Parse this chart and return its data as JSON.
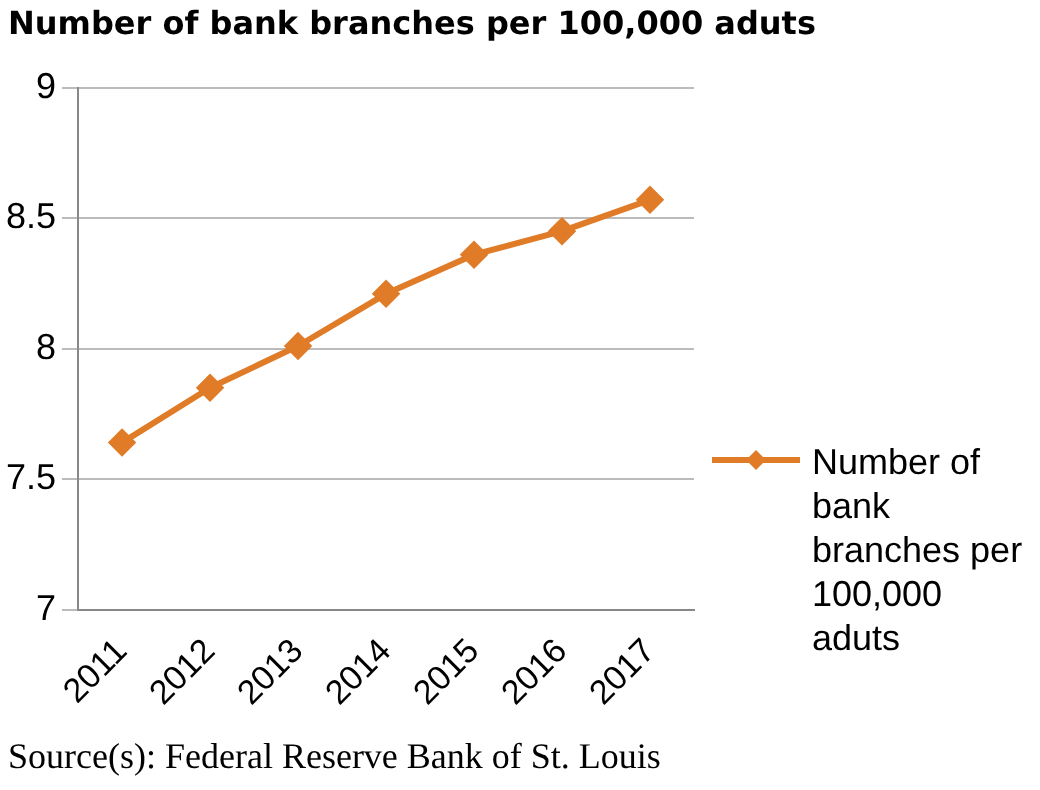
{
  "chart_data": {
    "type": "line",
    "title": "Number of bank branches per 100,000 aduts",
    "categories": [
      "2011",
      "2012",
      "2013",
      "2014",
      "2015",
      "2016",
      "2017"
    ],
    "series": [
      {
        "name": "Number of bank branches per 100,000 aduts",
        "color": "#e07b28",
        "values": [
          7.64,
          7.85,
          8.01,
          8.21,
          8.36,
          8.45,
          8.57
        ]
      }
    ],
    "ylim": [
      7,
      9
    ],
    "yticks": [
      7,
      7.5,
      8,
      8.5,
      9
    ],
    "grid": "y",
    "legend": "right",
    "marker": "diamond",
    "annotations": [
      "Source(s): Federal Reserve Bank of St. Louis"
    ]
  }
}
